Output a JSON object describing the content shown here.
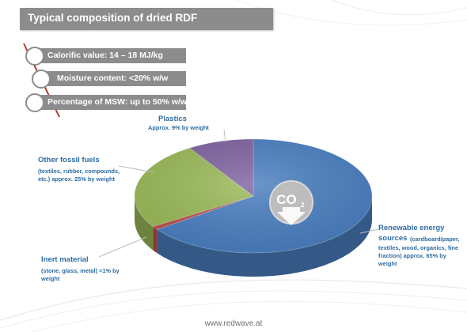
{
  "title": "Typical composition of dried RDF",
  "bullets": [
    {
      "text": "Calorific value: 14 – 18 MJ/kg"
    },
    {
      "text": "Moisture content: <20% w/w"
    },
    {
      "text": "Percentage of MSW: up to 50% w/w"
    }
  ],
  "chart_data": {
    "type": "pie",
    "title": "",
    "categories": [
      "Renewable energy sources",
      "Inert material",
      "Other fossil fuels",
      "Plastics"
    ],
    "values": [
      65,
      1,
      25,
      9
    ],
    "colors": [
      "#4a7fc1",
      "#c0504d",
      "#9bbb59",
      "#8064a2"
    ],
    "labels": [
      {
        "title": "Plastics",
        "desc": [
          "Approx. 9% by weight"
        ]
      },
      {
        "title": "Other fossil fuels",
        "desc": [
          "(textiles, rubber, compounds,",
          "etc.) approx. 25% by weight"
        ]
      },
      {
        "title": "Inert material",
        "desc": [
          "(stone, glass, metal) <1% by",
          "weight"
        ]
      },
      {
        "title": "Renewable energy sources",
        "title_lines": [
          "Renewable energy",
          "sources"
        ],
        "desc": [
          "(cardboard/paper,",
          "textiles, wood, organics, fine",
          "fraction) approx. 65% by",
          "weight"
        ]
      }
    ]
  },
  "co2_text": "CO",
  "co2_sub": "2",
  "co2_icon": "co2-arrow-icon",
  "footer": "www.redwave.at"
}
